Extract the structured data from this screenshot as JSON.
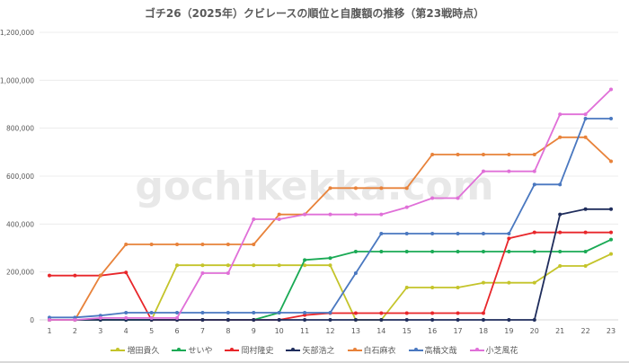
{
  "chart_data": {
    "type": "line",
    "title": "ゴチ26（2025年）クビレースの順位と自腹額の推移（第23戦時点）",
    "xlabel": "",
    "ylabel": "",
    "x": [
      1,
      2,
      3,
      4,
      5,
      6,
      7,
      8,
      9,
      10,
      11,
      12,
      13,
      14,
      15,
      16,
      17,
      18,
      19,
      20,
      21,
      22,
      23
    ],
    "ylim": [
      0,
      1200000
    ],
    "yticks": [
      0,
      200000,
      400000,
      600000,
      800000,
      1000000,
      1200000
    ],
    "ytick_labels": [
      "0",
      "200,000",
      "400,000",
      "600,000",
      "800,000",
      "1,000,000",
      "1,200,000"
    ],
    "grid": true,
    "legend_position": "bottom",
    "watermark": "gochikekka.com",
    "series": [
      {
        "name": "増田貴久",
        "color": "#c4c42a",
        "values": [
          0,
          0,
          0,
          0,
          0,
          228000,
          228000,
          228000,
          228000,
          228000,
          228000,
          228000,
          0,
          0,
          135000,
          135000,
          135000,
          155000,
          155000,
          155000,
          225000,
          225000,
          275000
        ]
      },
      {
        "name": "せいや",
        "color": "#1aaa55",
        "values": [
          0,
          0,
          0,
          0,
          0,
          0,
          0,
          0,
          0,
          30000,
          250000,
          258000,
          285000,
          285000,
          285000,
          285000,
          285000,
          285000,
          285000,
          285000,
          285000,
          285000,
          335000
        ]
      },
      {
        "name": "岡村隆史",
        "color": "#e8262a",
        "values": [
          185000,
          185000,
          185000,
          198000,
          0,
          0,
          0,
          0,
          0,
          0,
          20000,
          28000,
          28000,
          28000,
          28000,
          28000,
          28000,
          28000,
          340000,
          365000,
          365000,
          365000,
          365000
        ]
      },
      {
        "name": "矢部浩之",
        "color": "#1f2d5c",
        "values": [
          0,
          0,
          0,
          0,
          0,
          0,
          0,
          0,
          0,
          0,
          0,
          0,
          0,
          0,
          0,
          0,
          0,
          0,
          0,
          0,
          440000,
          462000,
          462000
        ]
      },
      {
        "name": "白石麻衣",
        "color": "#e8823a",
        "values": [
          0,
          0,
          185000,
          315000,
          315000,
          315000,
          315000,
          315000,
          315000,
          440000,
          440000,
          550000,
          550000,
          550000,
          550000,
          690000,
          690000,
          690000,
          690000,
          690000,
          762000,
          762000,
          662000
        ]
      },
      {
        "name": "高橋文哉",
        "color": "#4a78c0",
        "values": [
          10000,
          10000,
          18000,
          30000,
          30000,
          30000,
          30000,
          30000,
          30000,
          30000,
          30000,
          30000,
          195000,
          360000,
          360000,
          360000,
          360000,
          360000,
          360000,
          565000,
          565000,
          840000,
          840000
        ]
      },
      {
        "name": "小芝風花",
        "color": "#e070d8",
        "values": [
          0,
          0,
          8000,
          8000,
          8000,
          8000,
          195000,
          195000,
          420000,
          420000,
          440000,
          440000,
          440000,
          440000,
          470000,
          508000,
          508000,
          620000,
          620000,
          620000,
          858000,
          858000,
          962000
        ]
      }
    ]
  }
}
